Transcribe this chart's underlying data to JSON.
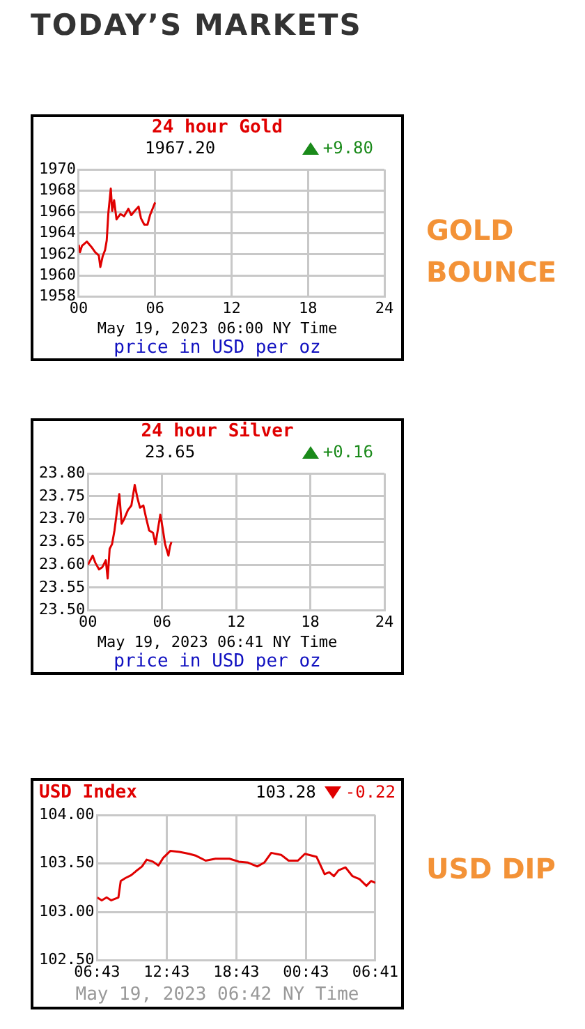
{
  "chart_data": [
    {
      "type": "line",
      "title": "24 hour Gold",
      "subtitle": "1967.20",
      "xlabel": "May 19, 2023 06:00 NY Time",
      "annotations": [
        "TODAY’S MARKETS",
        "+9.80",
        "price in USD per oz",
        "GOLD BOUNCE"
      ],
      "xlim": [
        0,
        24
      ],
      "xticks": [
        {
          "value": 0,
          "label": "00"
        },
        {
          "value": 6,
          "label": "06"
        },
        {
          "value": 12,
          "label": "12"
        },
        {
          "value": 18,
          "label": "18"
        },
        {
          "value": 24,
          "label": "24"
        }
      ],
      "ylim": [
        1958,
        1970
      ],
      "yticks": [
        1958,
        1960,
        1962,
        1964,
        1966,
        1968,
        1970
      ],
      "grid": true,
      "marker": "none",
      "line_style": "solid",
      "series": [
        {
          "color": "#e00000",
          "x": [
            0,
            0.1,
            0.26,
            0.64,
            1.0,
            1.3,
            1.58,
            1.7,
            1.88,
            2.07,
            2.2,
            2.33,
            2.52,
            2.63,
            2.78,
            2.97,
            3.27,
            3.57,
            3.9,
            4.13,
            4.4,
            4.7,
            4.89,
            5.15,
            5.4,
            5.6,
            5.8,
            6.0
          ],
          "values": [
            1962.9,
            1962.2,
            1962.8,
            1963.2,
            1962.7,
            1962.2,
            1961.9,
            1960.8,
            1961.8,
            1962.4,
            1963.3,
            1965.9,
            1968.2,
            1966.1,
            1967.1,
            1965.3,
            1965.8,
            1965.6,
            1966.3,
            1965.7,
            1966.1,
            1966.5,
            1965.4,
            1964.8,
            1964.8,
            1965.7,
            1966.3,
            1966.9
          ]
        }
      ]
    },
    {
      "type": "line",
      "title": "24 hour Silver",
      "subtitle": "23.65",
      "xlabel": "May 19, 2023 06:41 NY Time",
      "annotations": [
        "+0.16",
        "price in USD per oz"
      ],
      "xlim": [
        0,
        24
      ],
      "xticks": [
        {
          "value": 0,
          "label": "00"
        },
        {
          "value": 6,
          "label": "06"
        },
        {
          "value": 12,
          "label": "12"
        },
        {
          "value": 18,
          "label": "18"
        },
        {
          "value": 24,
          "label": "24"
        }
      ],
      "ylim": [
        23.5,
        23.8
      ],
      "yticks": [
        {
          "value": 23.5,
          "label": "23.50"
        },
        {
          "value": 23.55,
          "label": "23.55"
        },
        {
          "value": 23.6,
          "label": "23.60"
        },
        {
          "value": 23.65,
          "label": "23.65"
        },
        {
          "value": 23.7,
          "label": "23.70"
        },
        {
          "value": 23.75,
          "label": "23.75"
        },
        {
          "value": 23.8,
          "label": "23.80"
        }
      ],
      "grid": true,
      "marker": "none",
      "line_style": "solid",
      "series": [
        {
          "color": "#e00000",
          "x": [
            0,
            0.2,
            0.39,
            0.59,
            0.9,
            1.17,
            1.45,
            1.6,
            1.76,
            1.95,
            2.15,
            2.34,
            2.54,
            2.73,
            2.93,
            3.24,
            3.52,
            3.79,
            4.02,
            4.22,
            4.49,
            4.69,
            4.96,
            5.27,
            5.47,
            5.86,
            6.05,
            6.25,
            6.52,
            6.64,
            6.76
          ],
          "values": [
            23.6,
            23.61,
            23.62,
            23.605,
            23.59,
            23.595,
            23.61,
            23.57,
            23.635,
            23.645,
            23.675,
            23.715,
            23.755,
            23.69,
            23.7,
            23.72,
            23.73,
            23.775,
            23.745,
            23.725,
            23.73,
            23.705,
            23.675,
            23.67,
            23.645,
            23.71,
            23.68,
            23.645,
            23.62,
            23.64,
            23.65
          ]
        }
      ]
    },
    {
      "type": "line",
      "title": "USD Index",
      "subtitle": "103.28",
      "xlabel": "May 19, 2023 06:42 NY Time",
      "annotations": [
        "-0.22",
        "USD DIP"
      ],
      "xlim": [
        "2023-05-18T06:43",
        "2023-05-19T06:41"
      ],
      "xticks": [
        {
          "value": "2023-05-18T06:43",
          "label": "06:43"
        },
        {
          "value": "2023-05-18T12:43",
          "label": "12:43"
        },
        {
          "value": "2023-05-18T18:43",
          "label": "18:43"
        },
        {
          "value": "2023-05-19T00:43",
          "label": "00:43"
        },
        {
          "value": "2023-05-19T06:41",
          "label": "06:41"
        }
      ],
      "ylim": [
        102.5,
        104
      ],
      "yticks": [
        {
          "value": 102.5,
          "label": "102.50"
        },
        {
          "value": 103,
          "label": "103.00"
        },
        {
          "value": 103.5,
          "label": "103.50"
        },
        {
          "value": 104,
          "label": "104.00"
        }
      ],
      "grid": true,
      "marker": "none",
      "line_style": "solid",
      "series": [
        {
          "color": "#e00000",
          "x": [
            "2023-05-18T06:43",
            "2023-05-18T07:07",
            "2023-05-18T07:32",
            "2023-05-18T07:56",
            "2023-05-18T08:33",
            "2023-05-18T08:45",
            "2023-05-18T09:09",
            "2023-05-18T09:39",
            "2023-05-18T10:03",
            "2023-05-18T10:35",
            "2023-05-18T10:59",
            "2023-05-18T11:31",
            "2023-05-18T12:00",
            "2023-05-18T12:25",
            "2023-05-18T13:01",
            "2023-05-18T13:49",
            "2023-05-18T14:39",
            "2023-05-18T15:15",
            "2023-05-18T16:04",
            "2023-05-18T16:55",
            "2023-05-18T18:07",
            "2023-05-18T18:55",
            "2023-05-18T19:43",
            "2023-05-18T20:31",
            "2023-05-18T21:07",
            "2023-05-18T21:43",
            "2023-05-18T22:34",
            "2023-05-18T23:13",
            "2023-05-19T00:01",
            "2023-05-19T00:37",
            "2023-05-19T01:37",
            "2023-05-19T02:19",
            "2023-05-19T02:43",
            "2023-05-19T03:07",
            "2023-05-19T03:31",
            "2023-05-19T04:07",
            "2023-05-19T04:43",
            "2023-05-19T05:19",
            "2023-05-19T05:55",
            "2023-05-19T06:19",
            "2023-05-19T06:41"
          ],
          "values": [
            103.15,
            103.12,
            103.15,
            103.12,
            103.15,
            103.32,
            103.35,
            103.38,
            103.42,
            103.47,
            103.54,
            103.52,
            103.48,
            103.56,
            103.63,
            103.62,
            103.6,
            103.58,
            103.53,
            103.55,
            103.55,
            103.52,
            103.51,
            103.47,
            103.51,
            103.61,
            103.59,
            103.53,
            103.53,
            103.6,
            103.57,
            103.39,
            103.41,
            103.37,
            103.43,
            103.46,
            103.37,
            103.34,
            103.27,
            103.32,
            103.3
          ]
        }
      ]
    }
  ]
}
